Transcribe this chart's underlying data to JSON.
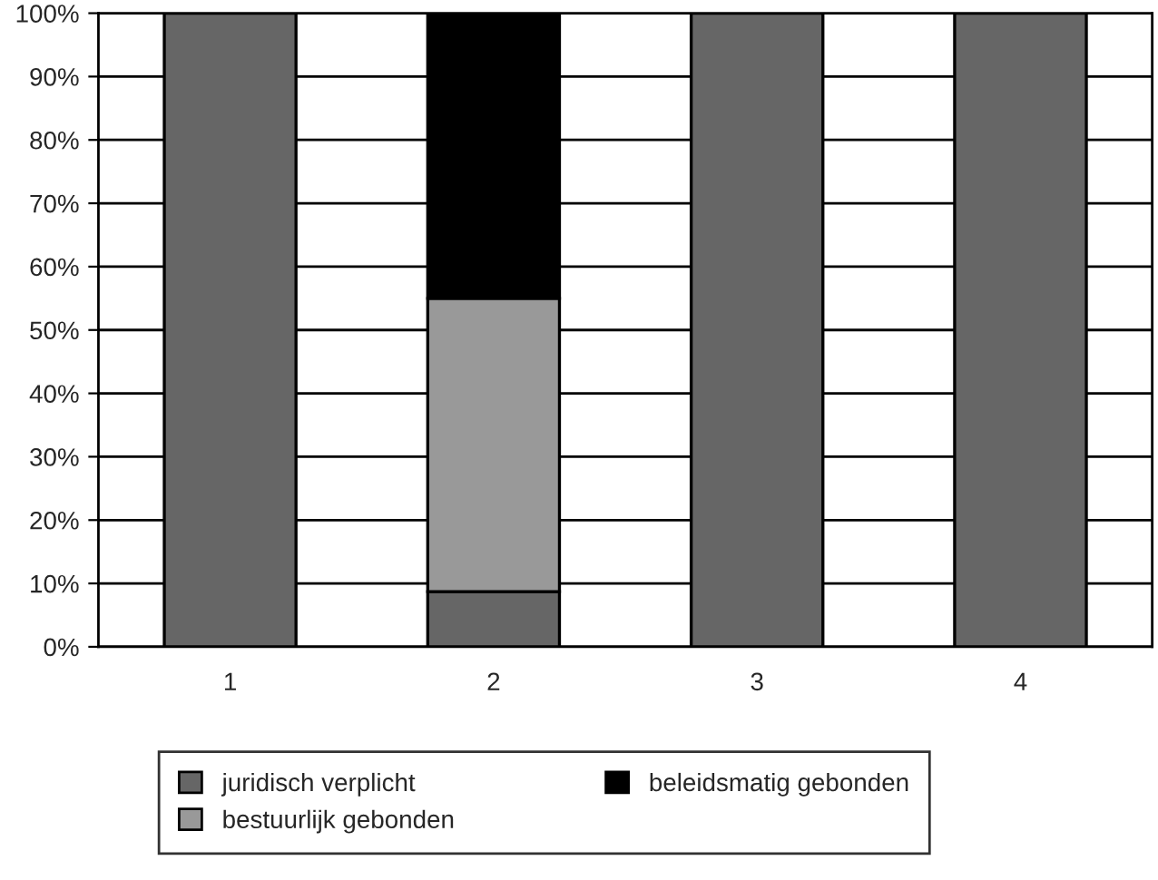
{
  "chart_data": {
    "type": "bar",
    "stacked": true,
    "categories": [
      "1",
      "2",
      "3",
      "4"
    ],
    "series": [
      {
        "name": "juridisch verplicht",
        "color": "#666666",
        "values": [
          100,
          8.7,
          100,
          100
        ]
      },
      {
        "name": "bestuurlijk gebonden",
        "color": "#999999",
        "values": [
          0,
          46.3,
          0,
          0
        ]
      },
      {
        "name": "beleidsmatig gebonden",
        "color": "#000000",
        "values": [
          0,
          45,
          0,
          0
        ]
      }
    ],
    "ylim": [
      0,
      100
    ],
    "yticks": [
      {
        "value": 0,
        "label": "0%"
      },
      {
        "value": 10,
        "label": "10%"
      },
      {
        "value": 20,
        "label": "20%"
      },
      {
        "value": 30,
        "label": "30%"
      },
      {
        "value": 40,
        "label": "40%"
      },
      {
        "value": 50,
        "label": "50%"
      },
      {
        "value": 60,
        "label": "60%"
      },
      {
        "value": 70,
        "label": "70%"
      },
      {
        "value": 80,
        "label": "80%"
      },
      {
        "value": 90,
        "label": "90%"
      },
      {
        "value": 100,
        "label": "100%"
      }
    ],
    "grid": "y",
    "legend": "bottom"
  }
}
